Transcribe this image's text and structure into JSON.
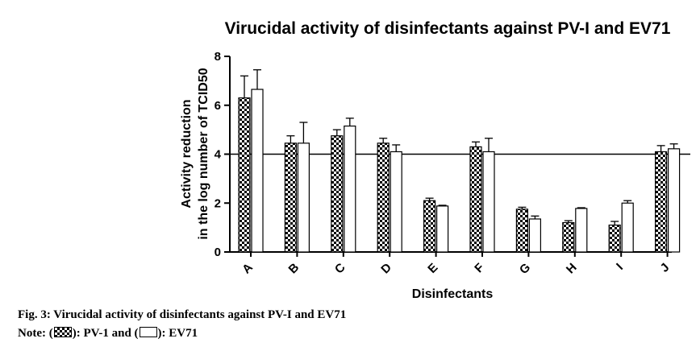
{
  "chart_data": {
    "type": "bar",
    "title": "Virucidal activity of disinfectants against PV-I and EV71",
    "xlabel": "Disinfectants",
    "ylabel_line1": "Activity reduction",
    "ylabel_line2": "in the log number of TCID50",
    "ylim": [
      0,
      8
    ],
    "yticks": [
      "0",
      "2",
      "4",
      "6",
      "8"
    ],
    "reference_line": 4,
    "categories": [
      "A",
      "B",
      "C",
      "D",
      "E",
      "F",
      "G",
      "H",
      "I",
      "J"
    ],
    "series": [
      {
        "fill": "checkered",
        "values": [
          6.3,
          4.45,
          4.75,
          4.45,
          2.1,
          4.3,
          1.75,
          1.2,
          1.1,
          4.1
        ],
        "errors": [
          0.9,
          0.3,
          0.25,
          0.2,
          0.1,
          0.2,
          0.08,
          0.08,
          0.15,
          0.25
        ]
      },
      {
        "fill": "white",
        "values": [
          6.65,
          4.45,
          5.15,
          4.1,
          1.88,
          4.1,
          1.35,
          1.78,
          2.0,
          4.22
        ],
        "errors": [
          0.8,
          0.85,
          0.32,
          0.28,
          0.03,
          0.55,
          0.12,
          0.03,
          0.1,
          0.2
        ]
      }
    ]
  },
  "caption": {
    "text": "Fig. 3: Virucidal activity of disinfectants against PV-I and EV71",
    "note_prefix": "Note: (",
    "note_mid1": "): PV-1 and (",
    "note_mid2": "): EV71"
  }
}
